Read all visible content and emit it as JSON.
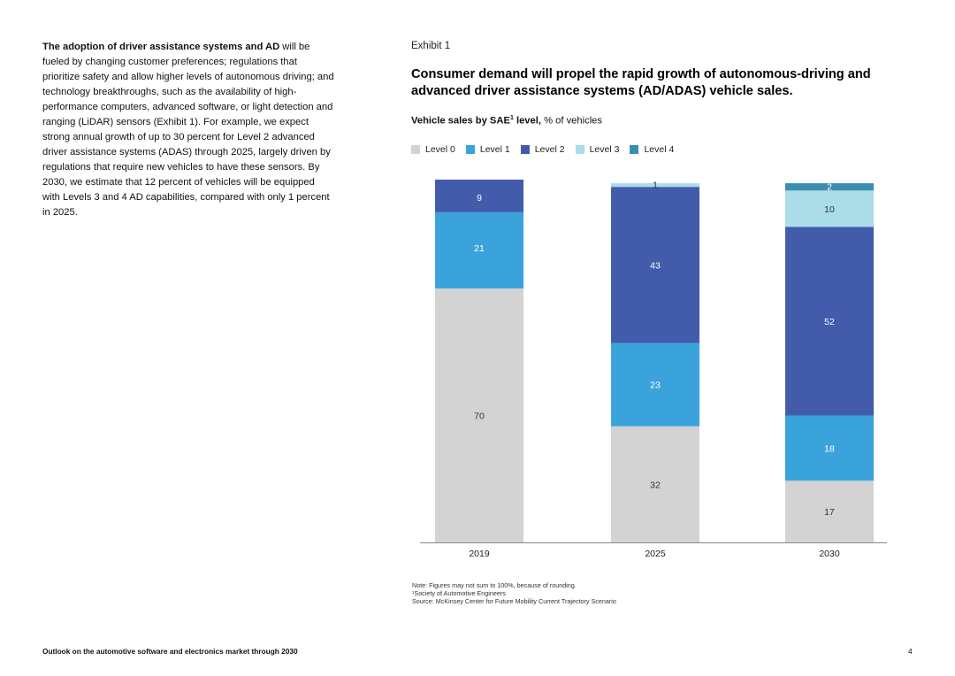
{
  "body_text": {
    "lead": "The adoption of driver assistance systems and AD",
    "rest": " will be fueled by changing customer preferences; regulations that prioritize safety and allow higher levels of autonomous driving; and technology breakthroughs, such as the availability of high-performance computers, advanced software, or light detection and ranging (LiDAR) sensors (Exhibit 1). For example, we expect strong annual growth of up to 30 percent for Level 2 advanced driver assistance systems (ADAS) through 2025, largely driven by regulations that require new vehicles to have these sensors. By 2030, we estimate that 12 percent of vehicles will be equipped with Levels 3 and 4 AD capabilities, compared with only 1 percent in 2025."
  },
  "exhibit": {
    "label": "Exhibit 1",
    "subtitle_bold": "Vehicle sales by SAE",
    "subtitle_sup": "1",
    "subtitle_bold2": " level,",
    "subtitle_rest": " % of vehicles"
  },
  "notes": {
    "note": "Note: Figures may not sum to 100%, because of rounding.",
    "footnote": "¹Society of Automotive Engineers",
    "source": "Source: McKinsey Center for Future Mobility Current Trajectory Scenario"
  },
  "footer": {
    "text": "Outlook on the automotive software and electronics market through 2030",
    "page": "4"
  },
  "chart_data": {
    "type": "bar",
    "stacked": true,
    "title": "Consumer demand will propel the rapid growth of autonomous-driving and advanced driver assistance systems (AD/ADAS) vehicle sales.",
    "ylabel": "% of vehicles",
    "categories": [
      "2019",
      "2025",
      "2030"
    ],
    "ylim": [
      0,
      100
    ],
    "series": [
      {
        "name": "Level 0",
        "color": "#d3d3d3",
        "values": [
          70,
          32,
          17
        ]
      },
      {
        "name": "Level 1",
        "color": "#3ba3dc",
        "values": [
          21,
          23,
          18
        ]
      },
      {
        "name": "Level 2",
        "color": "#425cab",
        "values": [
          9,
          43,
          52
        ]
      },
      {
        "name": "Level 3",
        "color": "#abdde9",
        "values": [
          0,
          1,
          10
        ]
      },
      {
        "name": "Level 4",
        "color": "#3a8eb1",
        "values": [
          0,
          0,
          2
        ]
      }
    ]
  }
}
